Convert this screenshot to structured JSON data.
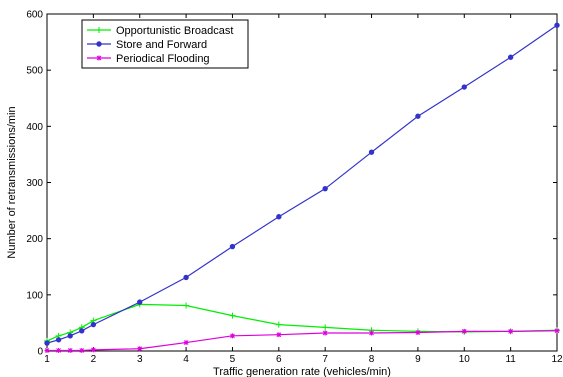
{
  "chart_data": {
    "type": "line",
    "title": "",
    "xlabel": "Traffic generation rate (vehicles/min)",
    "ylabel": "Number of retransmissions/min",
    "xlim": [
      1,
      12
    ],
    "ylim": [
      0,
      600
    ],
    "xticks": [
      1,
      2,
      3,
      4,
      5,
      6,
      7,
      8,
      9,
      10,
      11,
      12
    ],
    "yticks": [
      0,
      100,
      200,
      300,
      400,
      500,
      600
    ],
    "grid": false,
    "legend_position": "top-left",
    "series": [
      {
        "name": "Opportunistic Broadcast",
        "color": "#00ee00",
        "marker": "plus",
        "x": [
          1,
          1.25,
          1.5,
          1.75,
          2,
          3,
          4,
          5,
          6,
          7,
          8,
          9,
          10,
          11,
          12
        ],
        "y": [
          18,
          27,
          33,
          42,
          54,
          83,
          81,
          63,
          47,
          42,
          37,
          35,
          34,
          35,
          37
        ]
      },
      {
        "name": "Store and Forward",
        "color": "#3333cc",
        "marker": "circle",
        "x": [
          1,
          1.25,
          1.5,
          1.75,
          2,
          3,
          4,
          5,
          6,
          7,
          8,
          9,
          10,
          11,
          12
        ],
        "y": [
          14,
          20,
          27,
          36,
          47,
          87,
          131,
          186,
          239,
          289,
          354,
          418,
          470,
          523,
          580
        ]
      },
      {
        "name": "Periodical Flooding",
        "color": "#dd00dd",
        "marker": "star",
        "x": [
          1,
          1.25,
          1.5,
          1.75,
          2,
          3,
          4,
          5,
          6,
          7,
          8,
          9,
          10,
          11,
          12
        ],
        "y": [
          1,
          1,
          1,
          1,
          2,
          4,
          15,
          27,
          29,
          32,
          32,
          33,
          35,
          35,
          36
        ]
      }
    ]
  }
}
